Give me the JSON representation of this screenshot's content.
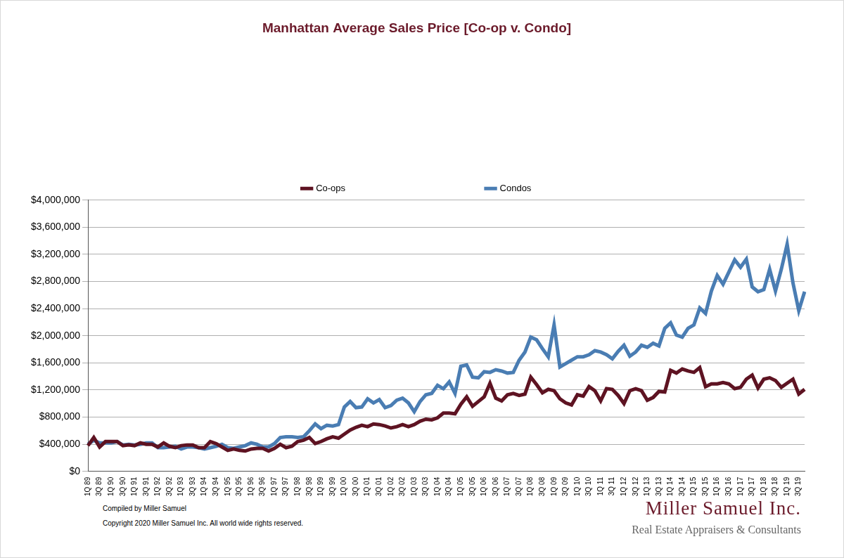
{
  "chart_data": {
    "type": "line",
    "title": "Manhattan Average Sales Price [Co-op v. Condo]",
    "annotations": [
      "Compiled by Miller Samuel",
      "Copyright 2020 Miller Samuel Inc.  All world wide rights reserved.",
      "Miller Samuel Inc.",
      "Real Estate Appraisers & Consultants"
    ],
    "categories": [
      "1Q 89",
      null,
      "3Q 89",
      null,
      "1Q 90",
      null,
      "3Q 90",
      null,
      "1Q 91",
      null,
      "3Q 91",
      null,
      "1Q 92",
      null,
      "3Q 92",
      null,
      "1Q 93",
      null,
      "3Q 93",
      null,
      "1Q 94",
      null,
      "3Q 94",
      null,
      "1Q 95",
      null,
      "3Q 95",
      null,
      "1Q 96",
      null,
      "3Q 96",
      null,
      "1Q 97",
      null,
      "3Q 97",
      null,
      "1Q 98",
      null,
      "3Q 98",
      null,
      "1Q 99",
      null,
      "3Q 99",
      null,
      "1Q 00",
      null,
      "3Q 00",
      null,
      "1Q 01",
      null,
      "3Q 01",
      null,
      "1Q 02",
      null,
      "3Q 02",
      null,
      "1Q 03",
      null,
      "3Q 03",
      null,
      "1Q 04",
      null,
      "3Q 04",
      null,
      "1Q 05",
      null,
      "3Q 05",
      null,
      "1Q 06",
      null,
      "3Q 06",
      null,
      "1Q 07",
      null,
      "3Q 07",
      null,
      "1Q 08",
      null,
      "3Q 08",
      null,
      "1Q 09",
      null,
      "3Q 09",
      null,
      "1Q 10",
      null,
      "3Q 10",
      null,
      "1Q 11",
      null,
      "3Q 11",
      null,
      "1Q 12",
      null,
      "3Q 12",
      null,
      "1Q 13",
      null,
      "3Q 13",
      null,
      "1Q 14",
      null,
      "3Q 14",
      null,
      "1Q 15",
      null,
      "3Q 15",
      null,
      "1Q 16",
      null,
      "3Q 16",
      null,
      "1Q 17",
      null,
      "3Q 17",
      null,
      "1Q 18",
      null,
      "3Q 18",
      null,
      "1Q 19",
      null,
      "3Q 19",
      null
    ],
    "series": [
      {
        "name": "Co-ops",
        "color": "#5e1322",
        "values": [
          380000,
          500000,
          360000,
          440000,
          440000,
          440000,
          380000,
          390000,
          380000,
          420000,
          400000,
          400000,
          360000,
          420000,
          370000,
          350000,
          380000,
          390000,
          390000,
          350000,
          350000,
          440000,
          410000,
          360000,
          310000,
          330000,
          310000,
          300000,
          330000,
          340000,
          340000,
          300000,
          340000,
          400000,
          350000,
          370000,
          440000,
          460000,
          500000,
          410000,
          440000,
          480000,
          510000,
          490000,
          550000,
          610000,
          650000,
          680000,
          660000,
          700000,
          690000,
          670000,
          640000,
          660000,
          690000,
          660000,
          690000,
          740000,
          770000,
          760000,
          790000,
          860000,
          860000,
          850000,
          990000,
          1100000,
          960000,
          1030000,
          1100000,
          1300000,
          1080000,
          1040000,
          1130000,
          1150000,
          1120000,
          1140000,
          1390000,
          1280000,
          1160000,
          1210000,
          1190000,
          1070000,
          1010000,
          980000,
          1130000,
          1110000,
          1250000,
          1190000,
          1040000,
          1220000,
          1210000,
          1120000,
          1000000,
          1190000,
          1220000,
          1190000,
          1050000,
          1090000,
          1180000,
          1170000,
          1490000,
          1450000,
          1510000,
          1480000,
          1460000,
          1530000,
          1250000,
          1290000,
          1290000,
          1310000,
          1290000,
          1220000,
          1240000,
          1360000,
          1420000,
          1230000,
          1360000,
          1380000,
          1340000,
          1240000,
          1300000,
          1360000,
          1140000,
          1210000
        ]
      },
      {
        "name": "Condos",
        "color": "#4a7db3",
        "values": [
          400000,
          460000,
          420000,
          420000,
          420000,
          440000,
          390000,
          400000,
          390000,
          400000,
          420000,
          420000,
          350000,
          350000,
          360000,
          370000,
          330000,
          360000,
          360000,
          350000,
          330000,
          350000,
          370000,
          400000,
          350000,
          340000,
          360000,
          380000,
          420000,
          400000,
          360000,
          360000,
          410000,
          500000,
          510000,
          510000,
          500000,
          510000,
          600000,
          700000,
          630000,
          680000,
          670000,
          690000,
          950000,
          1030000,
          940000,
          950000,
          1070000,
          1010000,
          1060000,
          940000,
          970000,
          1050000,
          1080000,
          1010000,
          880000,
          1030000,
          1130000,
          1150000,
          1270000,
          1220000,
          1320000,
          1150000,
          1550000,
          1570000,
          1390000,
          1380000,
          1470000,
          1460000,
          1500000,
          1480000,
          1450000,
          1460000,
          1640000,
          1760000,
          1980000,
          1940000,
          1810000,
          1690000,
          2160000,
          1540000,
          1590000,
          1640000,
          1690000,
          1690000,
          1720000,
          1780000,
          1760000,
          1720000,
          1660000,
          1770000,
          1860000,
          1700000,
          1760000,
          1860000,
          1830000,
          1890000,
          1850000,
          2110000,
          2190000,
          2010000,
          1980000,
          2110000,
          2160000,
          2410000,
          2330000,
          2660000,
          2890000,
          2760000,
          2940000,
          3120000,
          3010000,
          3130000,
          2720000,
          2650000,
          2680000,
          2980000,
          2660000,
          2980000,
          3350000,
          2780000,
          2370000,
          2650000
        ]
      }
    ],
    "ylim": [
      0,
      4000000
    ],
    "yticks": [
      {
        "value": 0,
        "label": "$0"
      },
      {
        "value": 400000,
        "label": "$400,000"
      },
      {
        "value": 800000,
        "label": "$800,000"
      },
      {
        "value": 1200000,
        "label": "$1,200,000"
      },
      {
        "value": 1600000,
        "label": "$1,600,000"
      },
      {
        "value": 2000000,
        "label": "$2,000,000"
      },
      {
        "value": 2400000,
        "label": "$2,400,000"
      },
      {
        "value": 2800000,
        "label": "$2,800,000"
      },
      {
        "value": 3200000,
        "label": "$3,200,000"
      },
      {
        "value": 3600000,
        "label": "$3,600,000"
      },
      {
        "value": 4000000,
        "label": "$4,000,000"
      }
    ],
    "grid": true,
    "legend": "top"
  }
}
